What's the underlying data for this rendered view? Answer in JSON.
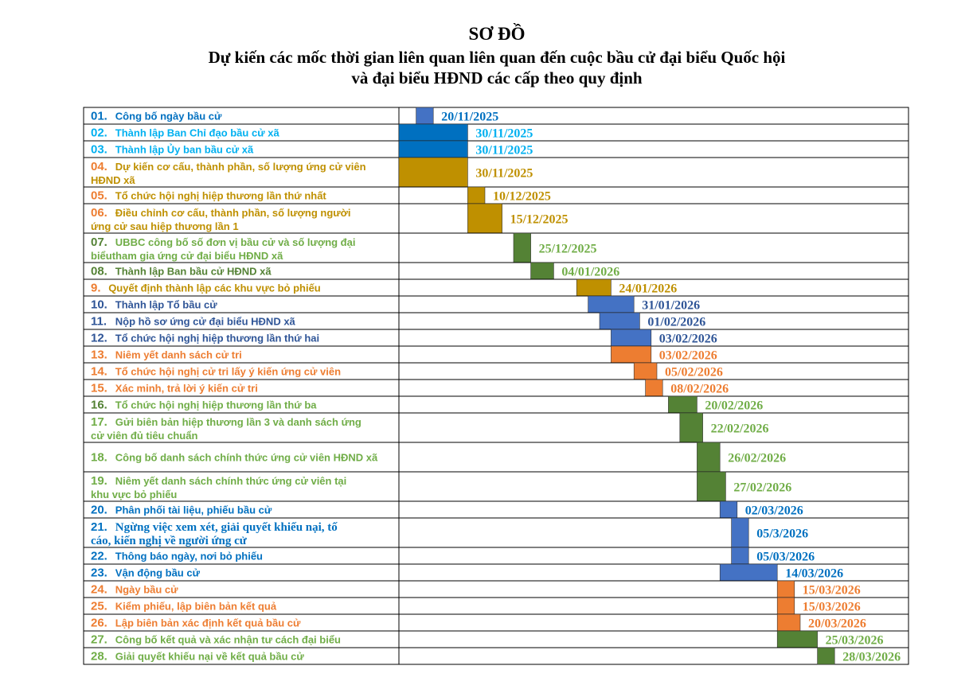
{
  "header": {
    "title": "SƠ ĐỒ",
    "subtitle_line1": "Dự kiến các mốc thời gian liên quan liên quan đến cuộc bầu cử đại biểu Quốc hội",
    "subtitle_line2": "và đại biểu HĐND các cấp theo quy định"
  },
  "colors": {
    "blue": "#4472C4",
    "lightblue": "#0070C0",
    "gold": "#BF9000",
    "orange": "#ED7D31",
    "green": "#548235",
    "text_blue": "#2F5597",
    "text_teal": "#00B0F0",
    "text_darkblue": "#0070C0",
    "text_green": "#70AD47"
  },
  "chart_data": {
    "type": "gantt",
    "title": "SƠ ĐỒ",
    "x_unit": "days from 15/11/2025",
    "tasks": [
      {
        "num": "01.",
        "label": "Công bố ngày bầu cử",
        "start": 3,
        "end": 6,
        "date": "20/11/2025",
        "color": "blue",
        "num_color": "text_darkblue",
        "label_color": "text_darkblue",
        "date_color": "text_darkblue"
      },
      {
        "num": "02.",
        "label": "Thành lập Ban Chỉ đạo bầu cử xã",
        "start": 0,
        "end": 12,
        "date": "30/11/2025",
        "color": "lightblue",
        "num_color": "text_teal",
        "label_color": "text_teal",
        "date_color": "text_teal"
      },
      {
        "num": "03.",
        "label": "Thành lập Ủy ban bầu cử xã",
        "start": 0,
        "end": 12,
        "date": "30/11/2025",
        "color": "lightblue",
        "num_color": "text_teal",
        "label_color": "text_teal",
        "date_color": "text_teal"
      },
      {
        "num": "04.",
        "label": "Dự kiến cơ cấu, thành phần, số lượng ứng cử viên HĐND xã",
        "start": 0,
        "end": 12,
        "date": "30/11/2025",
        "color": "gold",
        "num_color": "orange",
        "label_color": "gold",
        "date_color": "gold"
      },
      {
        "num": "05.",
        "label": "Tổ chức hội nghị hiệp thương lần thứ nhất",
        "start": 12,
        "end": 15,
        "date": "10/12/2025",
        "color": "gold",
        "num_color": "orange",
        "label_color": "gold",
        "date_color": "gold"
      },
      {
        "num": "06.",
        "label": "Điều chỉnh cơ cấu, thành phần, số lượng người ứng cử sau hiệp thương lần 1",
        "start": 12,
        "end": 18,
        "date": "15/12/2025",
        "color": "gold",
        "num_color": "orange",
        "label_color": "gold",
        "date_color": "gold"
      },
      {
        "num": "07.",
        "label": "UBBC công bố số đơn vị bầu cử và số lượng đại biểutham gia ứng cử đại biểu  HĐND xã",
        "start": 20,
        "end": 23,
        "date": "25/12/2025",
        "color": "green",
        "num_color": "green",
        "label_color": "text_green",
        "date_color": "text_green"
      },
      {
        "num": "08.",
        "label": "Thành lập Ban bầu cử HĐND xã",
        "start": 23,
        "end": 27,
        "date": "04/01/2026",
        "color": "green",
        "num_color": "green",
        "label_color": "green",
        "date_color": "text_green"
      },
      {
        "num": "9.",
        "label": "Quyết định thành lập các khu vực bỏ phiếu",
        "start": 31,
        "end": 37,
        "date": "24/01/2026",
        "color": "gold",
        "num_color": "orange",
        "label_color": "gold",
        "date_color": "gold"
      },
      {
        "num": "10.",
        "label": "Thành lập Tổ bầu cử",
        "start": 33,
        "end": 41,
        "date": "31/01/2026",
        "color": "blue",
        "num_color": "text_blue",
        "label_color": "text_blue",
        "date_color": "text_blue"
      },
      {
        "num": "11.",
        "label": "Nộp hồ sơ ứng cử đại biểu HĐND xã",
        "start": 35,
        "end": 42,
        "date": "01/02/2026",
        "color": "blue",
        "num_color": "text_blue",
        "label_color": "text_blue",
        "date_color": "text_blue"
      },
      {
        "num": "12.",
        "label": "Tổ chức hội nghị hiệp thương lần thứ hai",
        "start": 37,
        "end": 44,
        "date": "03/02/2026",
        "color": "blue",
        "num_color": "text_blue",
        "label_color": "text_blue",
        "date_color": "text_blue"
      },
      {
        "num": "13.",
        "label": "Niêm yết danh sách cử tri",
        "start": 37,
        "end": 44,
        "date": "03/02/2026",
        "color": "orange",
        "num_color": "orange",
        "label_color": "orange",
        "date_color": "orange"
      },
      {
        "num": "14.",
        "label": "Tổ chức hội nghị cử tri lấy ý kiến ứng cử viên",
        "start": 41,
        "end": 45,
        "date": "05/02/2026",
        "color": "orange",
        "num_color": "orange",
        "label_color": "orange",
        "date_color": "orange"
      },
      {
        "num": "15.",
        "label": "Xác minh, trả lời ý kiến cử tri",
        "start": 43,
        "end": 46,
        "date": "08/02/2026",
        "color": "orange",
        "num_color": "orange",
        "label_color": "orange",
        "date_color": "orange"
      },
      {
        "num": "16.",
        "label": "Tổ chức hội nghị hiệp thương lần thứ ba",
        "start": 47,
        "end": 52,
        "date": "20/02/2026",
        "color": "green",
        "num_color": "green",
        "label_color": "text_green",
        "date_color": "text_green"
      },
      {
        "num": "17.",
        "label": "Gửi biên bản hiệp thương lần 3 và danh sách ứng cử viên đủ tiêu chuẩn",
        "start": 49,
        "end": 53,
        "date": "22/02/2026",
        "color": "green",
        "num_color": "text_green",
        "label_color": "text_green",
        "date_color": "text_green"
      },
      {
        "num": "18.",
        "label": "Công bố danh sách chính thức ứng cử viên HĐND xã",
        "start": 52,
        "end": 56,
        "date": "26/02/2026",
        "color": "green",
        "num_color": "text_green",
        "label_color": "text_green",
        "date_color": "text_green"
      },
      {
        "num": "19.",
        "label": "Niêm yết danh sách chính thức ứng cử viên tại khu vực bỏ phiếu",
        "start": 52,
        "end": 57,
        "date": "27/02/2026",
        "color": "green",
        "num_color": "text_green",
        "label_color": "text_green",
        "date_color": "text_green"
      },
      {
        "num": "20.",
        "label": "Phân phối tài liệu, phiếu bầu cử",
        "start": 56,
        "end": 59,
        "date": "02/03/2026",
        "color": "blue",
        "num_color": "text_darkblue",
        "label_color": "text_darkblue",
        "date_color": "text_darkblue"
      },
      {
        "num": "21.",
        "label": "Ngừng việc xem xét, giải quyết khiếu nại, tố cáo, kiến nghị về người ứng cử",
        "start": 58,
        "end": 61,
        "date": "05/3/2026",
        "color": "blue",
        "num_color": "text_darkblue",
        "label_color": "text_darkblue",
        "date_color": "text_darkblue",
        "serif": true
      },
      {
        "num": "22.",
        "label": "Thông báo ngày, nơi bỏ phiếu",
        "start": 58,
        "end": 61,
        "date": "05/03/2026",
        "color": "blue",
        "num_color": "text_darkblue",
        "label_color": "text_darkblue",
        "date_color": "text_darkblue"
      },
      {
        "num": "23.",
        "label": "Vận động bầu cử",
        "start": 56,
        "end": 66,
        "date": "14/03/2026",
        "color": "blue",
        "num_color": "text_darkblue",
        "label_color": "text_darkblue",
        "date_color": "text_darkblue"
      },
      {
        "num": "24.",
        "label": "Ngày bầu cử",
        "start": 66,
        "end": 69,
        "date": "15/03/2026",
        "color": "orange",
        "num_color": "orange",
        "label_color": "orange",
        "date_color": "orange"
      },
      {
        "num": "25.",
        "label": "Kiểm phiếu, lập biên bản kết quả",
        "start": 66,
        "end": 69,
        "date": "15/03/2026",
        "color": "orange",
        "num_color": "orange",
        "label_color": "orange",
        "date_color": "orange"
      },
      {
        "num": "26.",
        "label": "Lập biên bản xác định kết quả bầu cử",
        "start": 66,
        "end": 70,
        "date": "20/03/2026",
        "color": "orange",
        "num_color": "orange",
        "label_color": "orange",
        "date_color": "orange"
      },
      {
        "num": "27.",
        "label": "Công bố kết quả và xác nhận tư cách đại biểu",
        "start": 66,
        "end": 73,
        "date": "25/03/2026",
        "color": "green",
        "num_color": "text_green",
        "label_color": "text_green",
        "date_color": "text_green"
      },
      {
        "num": "28.",
        "label": "Giải quyết khiếu nại về kết quả bầu cử",
        "start": 73,
        "end": 76,
        "date": "28/03/2026",
        "color": "green",
        "num_color": "text_green",
        "label_color": "text_green",
        "date_color": "text_green"
      }
    ]
  }
}
